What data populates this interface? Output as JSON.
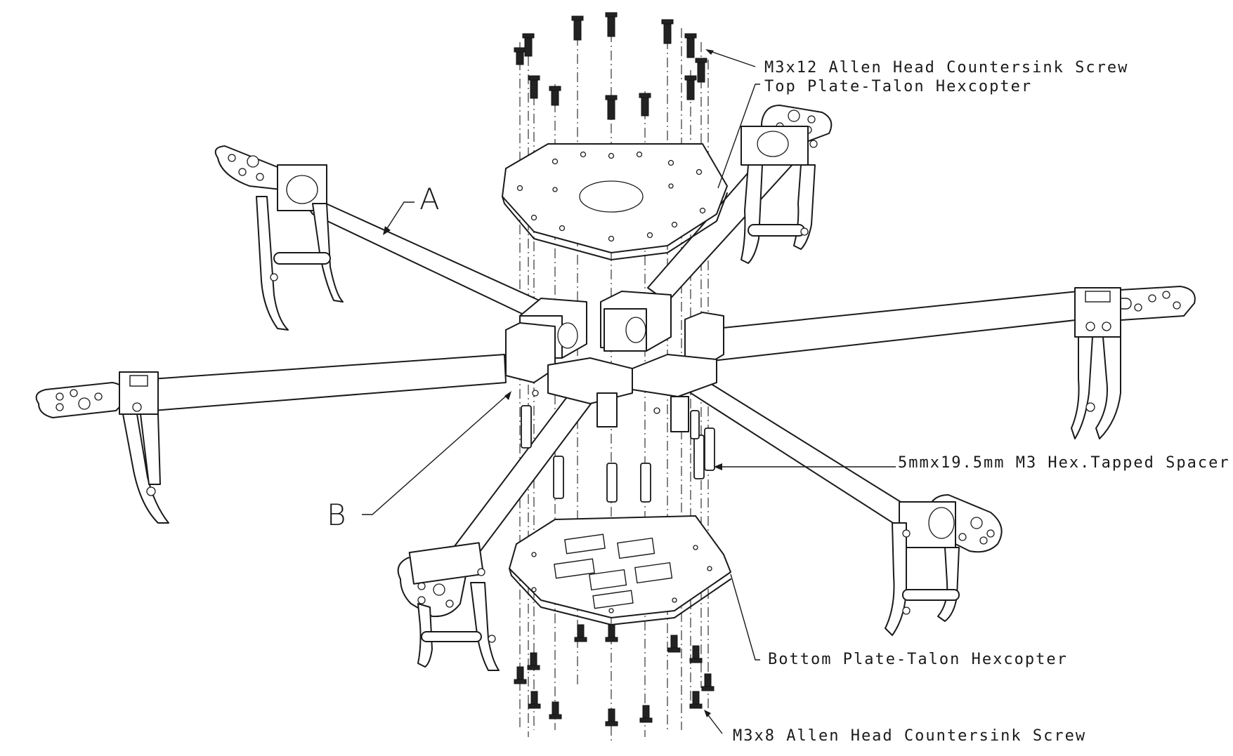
{
  "labels": {
    "top_screw": "M3x12 Allen Head Countersink Screw",
    "top_plate": "Top Plate-Talon Hexcopter",
    "spacer": "5mmx19.5mm M3 Hex.Tapped Spacer",
    "bottom_plate": "Bottom Plate-Talon Hexcopter",
    "bottom_screw": "M3x8 Allen Head Countersink Screw",
    "callout_a": "A",
    "callout_b": "B"
  }
}
